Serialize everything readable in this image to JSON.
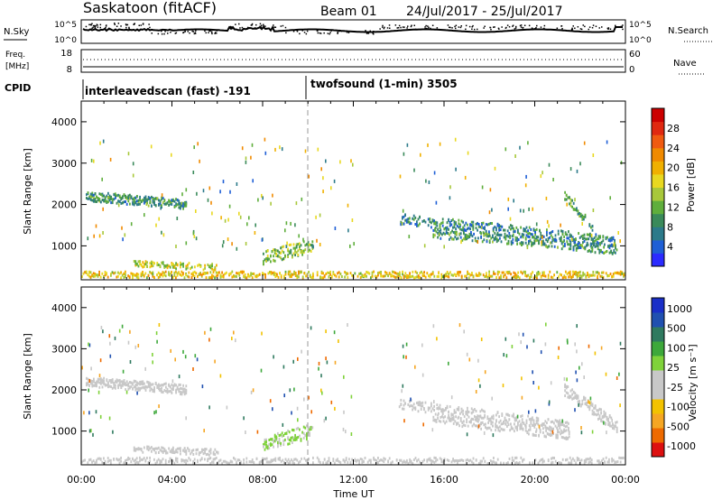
{
  "header": {
    "station": "Saskatoon (fitACF)",
    "beam": "Beam 01",
    "dates": "24/Jul/2017 - 25/Jul/2017"
  },
  "nsky_panel": {
    "left_label": "N.Sky",
    "right_label": "N.Search",
    "left_ticks": [
      "10^5",
      "10^0"
    ],
    "right_ticks": [
      "10^5",
      "10^0"
    ]
  },
  "freq_panel": {
    "left_label_1": "Freq.",
    "left_label_2": "[MHz]",
    "right_label": "Nave",
    "left_ticks": [
      "18",
      "8"
    ],
    "right_ticks": [
      "60",
      "0"
    ]
  },
  "cpid": {
    "label": "CPID",
    "modes": [
      {
        "text": "interleavedscan (fast) -191",
        "start_hour": 0,
        "end_hour": 10
      },
      {
        "text": "twofsound (1-min) 3505",
        "start_hour": 10,
        "end_hour": 24
      }
    ]
  },
  "chart_data": [
    {
      "type": "heatmap",
      "title": "",
      "xlabel": "Time UT",
      "ylabel": "Slant Range [km]",
      "x_tick_labels": [
        "00:00",
        "04:00",
        "08:00",
        "12:00",
        "16:00",
        "20:00",
        "00:00"
      ],
      "xlim_hours": [
        0,
        24
      ],
      "ylim": [
        180,
        4500
      ],
      "y_ticks": [
        1000,
        2000,
        3000,
        4000
      ],
      "colorbar": {
        "label": "Power [dB]",
        "range": [
          0,
          32
        ],
        "tick_labels": [
          "4",
          "8",
          "12",
          "16",
          "20",
          "24",
          "28"
        ],
        "colors": [
          "#2b2bff",
          "#1f5fd6",
          "#2c7a8a",
          "#3a8a5a",
          "#5fae3c",
          "#a8c83a",
          "#e8d820",
          "#f0b000",
          "#f08a00",
          "#f05a10",
          "#e02810",
          "#cc0000"
        ]
      },
      "echo_bands": [
        {
          "start": 0.2,
          "end": 4.6,
          "r0": 2200,
          "r1": 2000,
          "width": 230,
          "value": 9,
          "density": 0.85
        },
        {
          "start": 14.0,
          "end": 23.5,
          "r0": 1650,
          "r1": 1100,
          "width": 260,
          "value": 8,
          "density": 0.55
        },
        {
          "start": 15.5,
          "end": 23.6,
          "r0": 1300,
          "r1": 900,
          "width": 220,
          "value": 9,
          "density": 0.55
        },
        {
          "start": 21.3,
          "end": 22.6,
          "r0": 2200,
          "r1": 1400,
          "width": 200,
          "value": 10,
          "density": 0.6
        },
        {
          "start": 8.0,
          "end": 10.2,
          "r0": 700,
          "r1": 1000,
          "width": 330,
          "value": 13,
          "density": 0.55
        },
        {
          "start": 2.3,
          "end": 6.0,
          "r0": 560,
          "r1": 480,
          "width": 150,
          "value": 16,
          "density": 0.55
        },
        {
          "start": 0.0,
          "end": 24.0,
          "r0": 300,
          "r1": 300,
          "width": 150,
          "value": 18,
          "density": 0.55
        }
      ]
    },
    {
      "type": "heatmap",
      "title": "",
      "xlabel": "Time UT",
      "ylabel": "Slant Range [km]",
      "x_tick_labels": [
        "00:00",
        "04:00",
        "08:00",
        "12:00",
        "16:00",
        "20:00",
        "00:00"
      ],
      "xlim_hours": [
        0,
        24
      ],
      "ylim": [
        180,
        4500
      ],
      "y_ticks": [
        1000,
        2000,
        3000,
        4000
      ],
      "colorbar": {
        "label": "Velocity [m s⁻¹]",
        "range": [
          -1250,
          1250
        ],
        "tick_labels": [
          "1000",
          "500",
          "100",
          "25",
          "-25",
          "-100",
          "-500",
          "-1000"
        ],
        "colors": [
          "#dd1010",
          "#ee6a00",
          "#f5a623",
          "#f2c200",
          "#c8c8c8",
          "#c8c8c8",
          "#7fd23a",
          "#3da83a",
          "#2f7a5f",
          "#2050b0",
          "#1a2fc8"
        ]
      },
      "echo_bands": [
        {
          "start": 0.2,
          "end": 4.6,
          "r0": 2200,
          "r1": 2000,
          "width": 230,
          "value": 0,
          "density": 0.85
        },
        {
          "start": 14.0,
          "end": 21.5,
          "r0": 1650,
          "r1": 1100,
          "width": 260,
          "value": 0,
          "density": 0.5
        },
        {
          "start": 15.5,
          "end": 21.5,
          "r0": 1300,
          "r1": 900,
          "width": 220,
          "value": 0,
          "density": 0.5
        },
        {
          "start": 21.3,
          "end": 23.6,
          "r0": 2000,
          "r1": 1100,
          "width": 300,
          "value": -150,
          "density": 0.65
        },
        {
          "start": 8.0,
          "end": 10.2,
          "r0": 700,
          "r1": 1000,
          "width": 330,
          "value": 120,
          "density": 0.55
        },
        {
          "start": 2.3,
          "end": 6.0,
          "r0": 560,
          "r1": 480,
          "width": 150,
          "value": -60,
          "density": 0.6
        },
        {
          "start": 0.0,
          "end": 24.0,
          "r0": 280,
          "r1": 280,
          "width": 140,
          "value": -70,
          "density": 0.55
        }
      ]
    }
  ]
}
